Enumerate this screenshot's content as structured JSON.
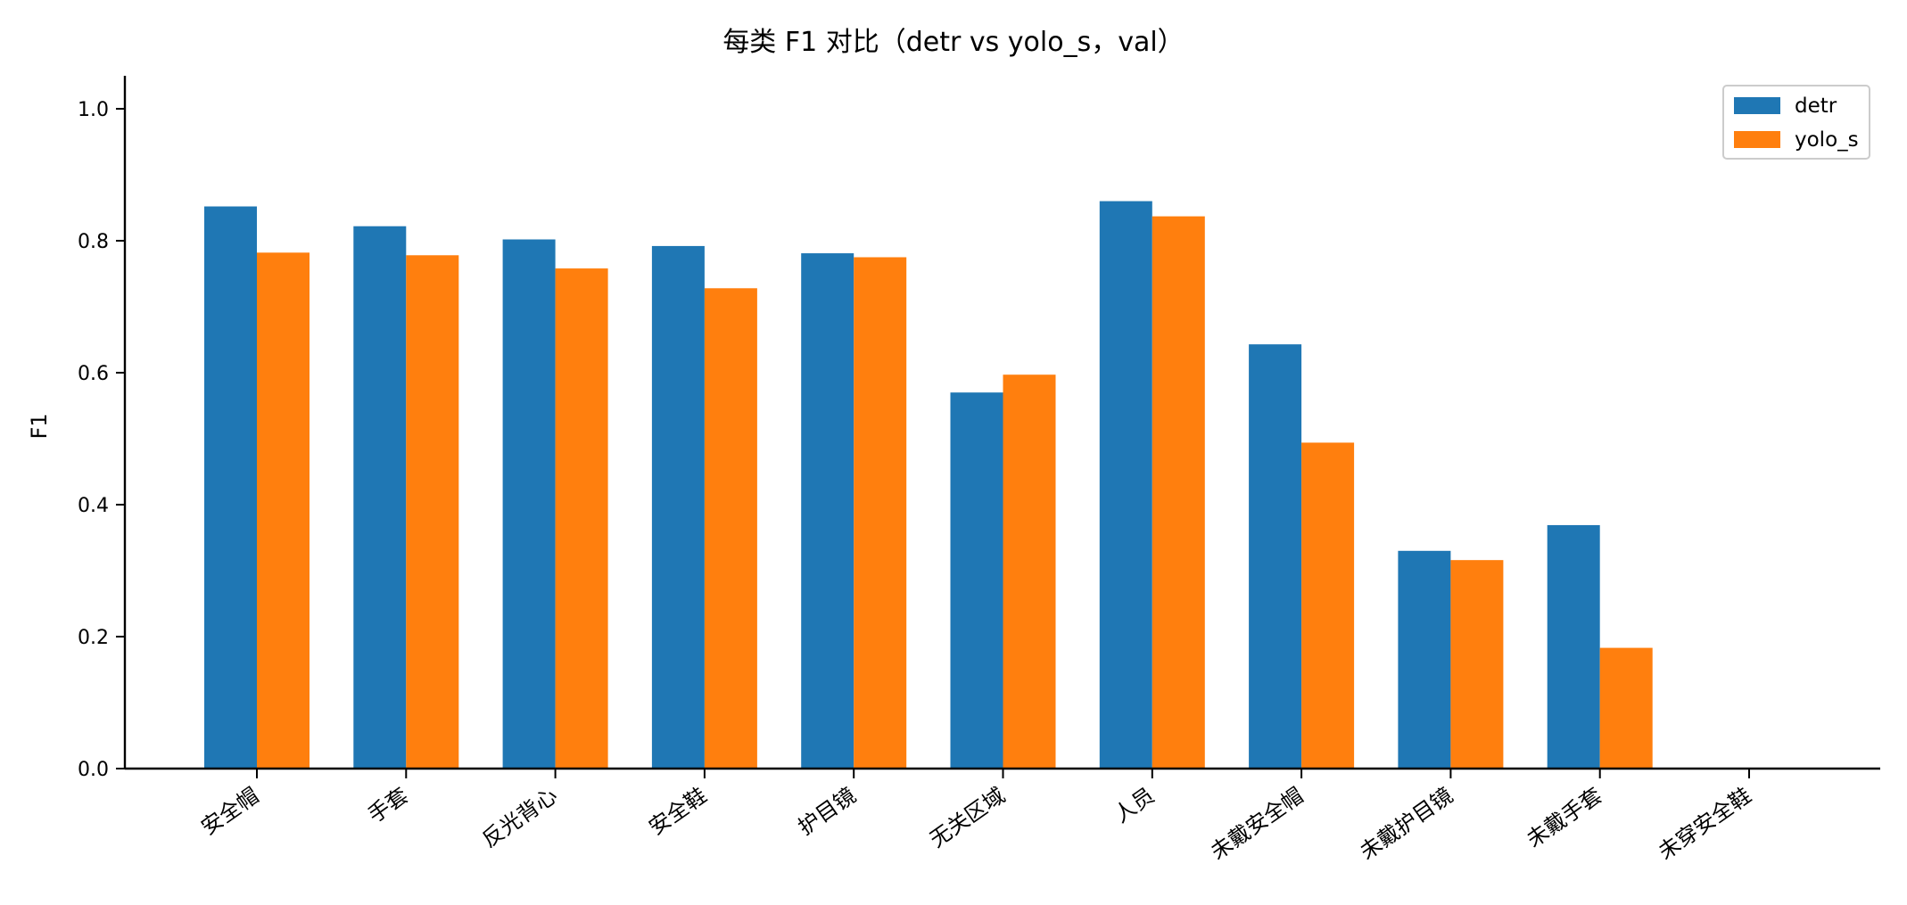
{
  "chart_data": {
    "type": "bar",
    "title": "每类 F1 对比（detr vs yolo_s，val）",
    "xlabel": "",
    "ylabel": "F1",
    "ylim": [
      0,
      1.05
    ],
    "yticks": [
      "0.0",
      "0.2",
      "0.4",
      "0.6",
      "0.8",
      "1.0"
    ],
    "ytick_values": [
      0,
      0.2,
      0.4,
      0.6,
      0.8,
      1.0
    ],
    "grid": false,
    "legend_position": "top-right",
    "categories": [
      "安全帽",
      "手套",
      "反光背心",
      "安全鞋",
      "护目镜",
      "无关区域",
      "人员",
      "未戴安全帽",
      "未戴护目镜",
      "未戴手套",
      "未穿安全鞋"
    ],
    "series": [
      {
        "name": "detr",
        "color": "#1f77b4",
        "values": [
          0.852,
          0.822,
          0.802,
          0.792,
          0.781,
          0.57,
          0.86,
          0.643,
          0.33,
          0.369,
          0.0
        ]
      },
      {
        "name": "yolo_s",
        "color": "#ff7f0e",
        "values": [
          0.782,
          0.778,
          0.758,
          0.728,
          0.775,
          0.597,
          0.837,
          0.494,
          0.316,
          0.183,
          0.0
        ]
      }
    ]
  }
}
